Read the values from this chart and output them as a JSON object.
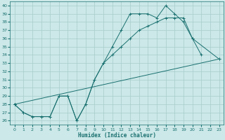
{
  "bg_color": "#cce8e8",
  "grid_color": "#a8cccc",
  "line_color": "#1a7070",
  "xlabel": "Humidex (Indice chaleur)",
  "xlim": [
    -0.5,
    23.5
  ],
  "ylim": [
    25.5,
    40.5
  ],
  "yticks": [
    26,
    27,
    28,
    29,
    30,
    31,
    32,
    33,
    34,
    35,
    36,
    37,
    38,
    39,
    40
  ],
  "xticks": [
    0,
    1,
    2,
    3,
    4,
    5,
    6,
    7,
    8,
    9,
    10,
    11,
    12,
    13,
    14,
    15,
    16,
    17,
    18,
    19,
    20,
    21,
    22,
    23
  ],
  "line1_x": [
    0,
    1,
    2,
    3,
    4,
    5,
    6,
    7,
    8,
    9,
    10,
    11,
    12,
    13,
    14,
    15,
    16,
    17,
    18,
    19,
    20,
    21
  ],
  "line1_y": [
    28,
    27,
    26.5,
    26.5,
    26.5,
    29,
    29,
    26,
    28,
    31,
    33,
    35,
    37,
    39,
    39,
    39,
    38.5,
    40,
    39,
    38,
    36,
    34
  ],
  "line2_x": [
    0,
    1,
    2,
    3,
    4,
    5,
    6,
    7,
    8,
    9,
    10,
    11,
    12,
    13,
    14,
    15,
    16,
    17,
    18,
    19,
    20,
    23
  ],
  "line2_y": [
    28,
    27,
    26.5,
    26.5,
    26.5,
    29,
    29,
    26,
    28,
    31,
    33,
    34,
    35,
    36,
    37,
    37.5,
    38,
    38.5,
    38.5,
    38.5,
    36,
    33.5
  ],
  "line3_x": [
    0,
    23
  ],
  "line3_y": [
    28,
    33.5
  ]
}
